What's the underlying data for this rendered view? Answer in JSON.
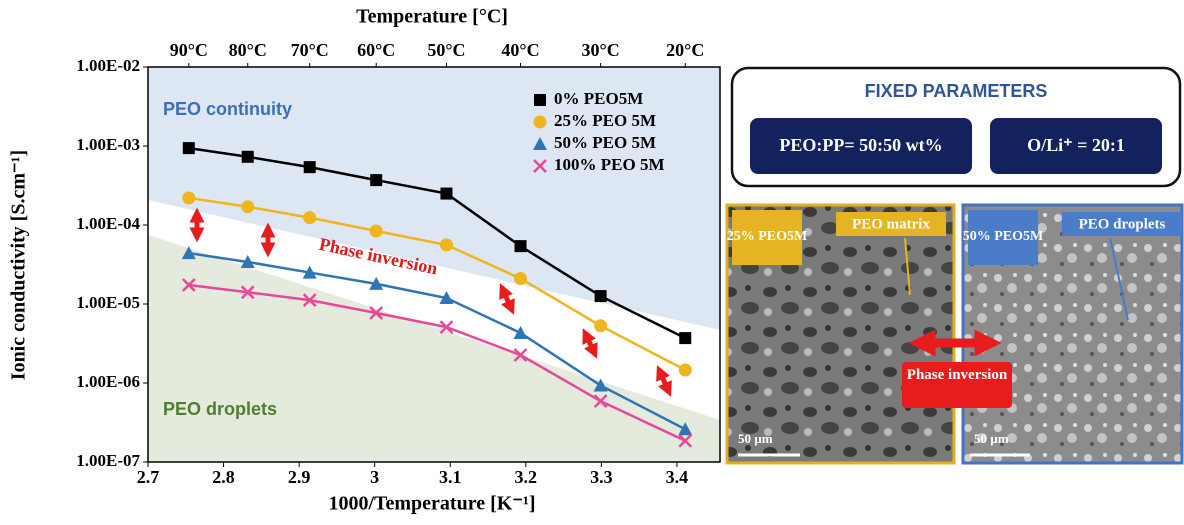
{
  "chart_data": {
    "type": "line",
    "x_label": "1000/Temperature [K⁻¹]",
    "y_label": "Ionic conductivity [S.cm⁻¹]",
    "x2_label": "Temperature [°C]",
    "annotations": [
      "PEO continuity",
      "Phase inversion",
      "PEO droplets"
    ],
    "x": [
      2.754,
      2.832,
      2.914,
      3.002,
      3.095,
      3.193,
      3.299,
      3.411
    ],
    "series": [
      {
        "name": "0% PEO5M",
        "color": "#000000",
        "marker": "square",
        "values": [
          0.00094,
          0.00073,
          0.00054,
          0.00037,
          0.00025,
          5.4e-05,
          1.26e-05,
          3.7e-06
        ]
      },
      {
        "name": "25% PEO 5M",
        "color": "#f0b41c",
        "marker": "circle",
        "values": [
          0.00022,
          0.00017,
          0.000124,
          8.4e-05,
          5.6e-05,
          2.1e-05,
          5.3e-06,
          1.46e-06
        ]
      },
      {
        "name": "50% PEO 5M",
        "color": "#2e75b6",
        "marker": "triangle",
        "values": [
          4.4e-05,
          3.4e-05,
          2.5e-05,
          1.8e-05,
          1.19e-05,
          4.3e-06,
          9.3e-07,
          2.6e-07
        ]
      },
      {
        "name": "100% PEO 5M",
        "color": "#e8489a",
        "marker": "cross",
        "values": [
          1.74e-05,
          1.41e-05,
          1.12e-05,
          7.7e-06,
          5.1e-06,
          2.26e-06,
          5.9e-07,
          1.86e-07
        ]
      }
    ],
    "xlim": [
      2.7,
      3.457
    ],
    "xticks": [
      2.7,
      2.8,
      2.9,
      3,
      3.1,
      3.2,
      3.3,
      3.4
    ],
    "x2ticks": [
      {
        "value": 2.754,
        "label": "90°C"
      },
      {
        "value": 2.832,
        "label": "80°C"
      },
      {
        "value": 2.914,
        "label": "70°C"
      },
      {
        "value": 3.002,
        "label": "60°C"
      },
      {
        "value": 3.095,
        "label": "50°C"
      },
      {
        "value": 3.193,
        "label": "40°C"
      },
      {
        "value": 3.299,
        "label": "30°C"
      },
      {
        "value": 3.411,
        "label": "20°C"
      }
    ],
    "ylim": [
      1e-07,
      0.01
    ],
    "ylog": true,
    "yticks": [
      {
        "value": 0.01,
        "label": "1.00E-02"
      },
      {
        "value": 0.001,
        "label": "1.00E-03"
      },
      {
        "value": 0.0001,
        "label": "1.00E-04"
      },
      {
        "value": 1e-05,
        "label": "1.00E-05"
      },
      {
        "value": 1e-06,
        "label": "1.00E-06"
      },
      {
        "value": 1e-07,
        "label": "1.00E-07"
      }
    ],
    "legend": "upper right"
  },
  "panel": {
    "title": "FIXED PARAMETERS",
    "params": [
      "PEO:PP= 50:50 wt%",
      "O/Li⁺ = 20:1"
    ],
    "images": [
      {
        "sample": "25% PEO5M",
        "feature": "PEO matrix",
        "scale": "50 µm"
      },
      {
        "sample": "50% PEO5M",
        "feature": "PEO droplets",
        "scale": "50 µm"
      }
    ],
    "center_label": "Phase inversion"
  }
}
